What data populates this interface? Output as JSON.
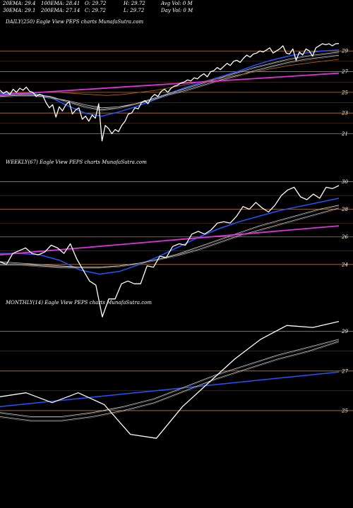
{
  "header": {
    "ema20": "20EMA: 29.4",
    "ema100": "100EMA: 28.41",
    "open": "O: 29.72",
    "high": "H: 29.72",
    "avg_vol": "Avg Vol: 0  M",
    "ema30": "30EMA: 29.1",
    "ema200": "200EMA: 27.14",
    "close": "C: 29.72",
    "low": "L: 29.72",
    "day_vol": "Day Vol: 0  M"
  },
  "panels": [
    {
      "label": "DAILY(250) Eagle   View  PEPS charts MunafaSutra.com"
    },
    {
      "label": "WEEKLY(67) Eagle   View  PEPS charts MunafaSutra.com"
    },
    {
      "label": "MONTHLY(14) Eagle   View  PEPS charts MunafaSutra.com"
    }
  ],
  "colors": {
    "background": "#000000",
    "price": "#ffffff",
    "fast_ma": "#2255ff",
    "slow_ma": "#dd33dd",
    "ma_grey": "#c8c8c8",
    "ma_brown": "#b5651d",
    "grid": "#c07a30"
  },
  "chart_data": [
    {
      "type": "line",
      "ylim": [
        19.6,
        31.2
      ],
      "yticks": [
        29,
        27,
        25,
        23,
        21
      ],
      "series": [
        {
          "role": "price",
          "values": [
            25.2,
            24.9,
            25.1,
            24.8,
            25.3,
            25.0,
            25.4,
            25.2,
            25.5,
            25.1,
            25.0,
            24.6,
            24.8,
            24.7,
            24.0,
            23.5,
            23.8,
            22.6,
            23.6,
            23.2,
            23.8,
            24.1,
            22.9,
            23.3,
            23.5,
            22.4,
            22.7,
            22.2,
            22.8,
            22.5,
            23.9,
            20.3,
            21.8,
            21.5,
            21.0,
            21.4,
            21.2,
            21.8,
            22.2,
            22.9,
            23.0,
            23.5,
            23.4,
            24.0,
            24.2,
            23.9,
            24.5,
            24.8,
            24.6,
            25.1,
            25.3,
            25.0,
            25.4,
            25.6,
            25.7,
            25.9,
            26.0,
            26.2,
            26.1,
            26.4,
            26.3,
            26.6,
            26.8,
            26.5,
            27.0,
            27.1,
            27.4,
            27.2,
            27.5,
            27.8,
            27.6,
            28.0,
            28.1,
            27.9,
            28.3,
            28.6,
            28.4,
            28.7,
            28.8,
            29.0,
            28.9,
            29.1,
            29.3,
            28.8,
            29.0,
            29.2,
            29.5,
            28.8,
            28.7,
            29.2,
            28.1,
            28.9,
            28.6,
            29.2,
            29.0,
            28.5,
            29.3,
            29.5,
            29.7,
            29.6,
            29.7,
            29.5,
            29.7,
            29.72
          ]
        },
        {
          "role": "ma",
          "color": "#2255ff",
          "values": [
            24.9,
            24.9,
            24.9,
            24.5,
            23.7,
            23.0,
            22.7,
            23.1,
            23.6,
            24.2,
            24.9,
            25.5,
            26.0,
            26.5,
            27.0,
            27.6,
            28.1,
            28.5,
            28.8,
            29.0,
            29.1
          ]
        },
        {
          "role": "ma",
          "color": "#c8c8c8",
          "values": [
            24.7,
            24.8,
            24.8,
            24.6,
            24.1,
            23.6,
            23.3,
            23.5,
            23.9,
            24.4,
            24.9,
            25.4,
            25.9,
            26.4,
            26.9,
            27.4,
            27.8,
            28.2,
            28.5,
            28.7,
            28.9
          ]
        },
        {
          "role": "ma",
          "color": "#c8c8c8",
          "values": [
            24.6,
            24.7,
            24.7,
            24.5,
            24.2,
            23.8,
            23.5,
            23.6,
            23.9,
            24.3,
            24.8,
            25.2,
            25.7,
            26.2,
            26.6,
            27.1,
            27.5,
            27.9,
            28.2,
            28.4,
            28.6
          ]
        },
        {
          "role": "ma",
          "color": "#b5651d",
          "values": [
            24.8,
            24.9,
            25.0,
            25.0,
            24.9,
            24.8,
            24.7,
            24.8,
            25.0,
            25.2,
            25.5,
            25.8,
            26.1,
            26.4,
            26.7,
            27.0,
            27.3,
            27.6,
            27.8,
            28.0,
            28.2
          ]
        },
        {
          "role": "ma",
          "color": "#dd33dd",
          "values": [
            24.75,
            25.05,
            25.35,
            25.65,
            25.95,
            26.25,
            26.55,
            26.85
          ]
        }
      ]
    },
    {
      "type": "line",
      "ylim": [
        22.2,
        31.0
      ],
      "yticks": [
        30,
        28,
        26,
        24
      ],
      "series": [
        {
          "role": "price",
          "values": [
            24.2,
            24.0,
            24.8,
            25.0,
            25.2,
            24.8,
            24.7,
            24.9,
            25.4,
            25.2,
            24.8,
            25.5,
            24.4,
            23.6,
            22.8,
            22.5,
            20.2,
            21.5,
            21.5,
            22.6,
            22.8,
            22.6,
            22.6,
            23.9,
            23.8,
            24.6,
            24.5,
            25.3,
            25.5,
            25.4,
            26.2,
            26.4,
            26.2,
            26.5,
            27.0,
            27.1,
            27.0,
            27.5,
            28.2,
            28.0,
            28.5,
            28.1,
            27.8,
            28.3,
            29.0,
            29.4,
            29.6,
            28.9,
            28.7,
            29.1,
            28.8,
            29.6,
            29.5,
            29.72
          ]
        },
        {
          "role": "ma",
          "color": "#2255ff",
          "values": [
            24.8,
            24.8,
            24.7,
            24.3,
            23.6,
            23.3,
            23.5,
            24.0,
            24.6,
            25.3,
            26.0,
            26.6,
            27.1,
            27.5,
            27.9,
            28.2,
            28.5,
            28.8
          ]
        },
        {
          "role": "ma",
          "color": "#c8c8c8",
          "values": [
            24.2,
            24.1,
            24.0,
            23.9,
            23.8,
            23.8,
            23.9,
            24.1,
            24.4,
            24.8,
            25.3,
            25.8,
            26.3,
            26.8,
            27.2,
            27.6,
            28.0,
            28.3
          ]
        },
        {
          "role": "ma",
          "color": "#c8c8c8",
          "values": [
            24.0,
            24.0,
            23.9,
            23.8,
            23.8,
            23.8,
            23.9,
            24.1,
            24.4,
            24.7,
            25.1,
            25.6,
            26.1,
            26.5,
            26.9,
            27.3,
            27.7,
            28.1
          ]
        },
        {
          "role": "ma",
          "color": "#dd33dd",
          "values": [
            24.7,
            25.05,
            25.4,
            25.75,
            26.1,
            26.45,
            26.8
          ]
        }
      ]
    },
    {
      "type": "line",
      "ylim": [
        24.0,
        30.2
      ],
      "yticks": [
        29,
        27,
        25
      ],
      "series": [
        {
          "role": "price",
          "values": [
            25.7,
            25.9,
            25.4,
            25.9,
            25.3,
            23.8,
            23.6,
            25.2,
            26.4,
            27.6,
            28.6,
            29.3,
            29.2,
            29.5
          ]
        },
        {
          "role": "ma",
          "color": "#2255ff",
          "values": [
            25.2,
            25.45,
            25.7,
            25.95,
            26.2,
            26.45,
            26.7,
            26.95
          ]
        },
        {
          "role": "ma",
          "color": "#c8c8c8",
          "values": [
            24.9,
            24.7,
            24.7,
            24.9,
            25.2,
            25.6,
            26.2,
            26.8,
            27.3,
            27.8,
            28.2,
            28.6
          ]
        },
        {
          "role": "ma",
          "color": "#c8c8c8",
          "values": [
            24.7,
            24.5,
            24.5,
            24.7,
            25.0,
            25.4,
            26.0,
            26.6,
            27.1,
            27.6,
            28.0,
            28.5
          ]
        }
      ]
    }
  ]
}
